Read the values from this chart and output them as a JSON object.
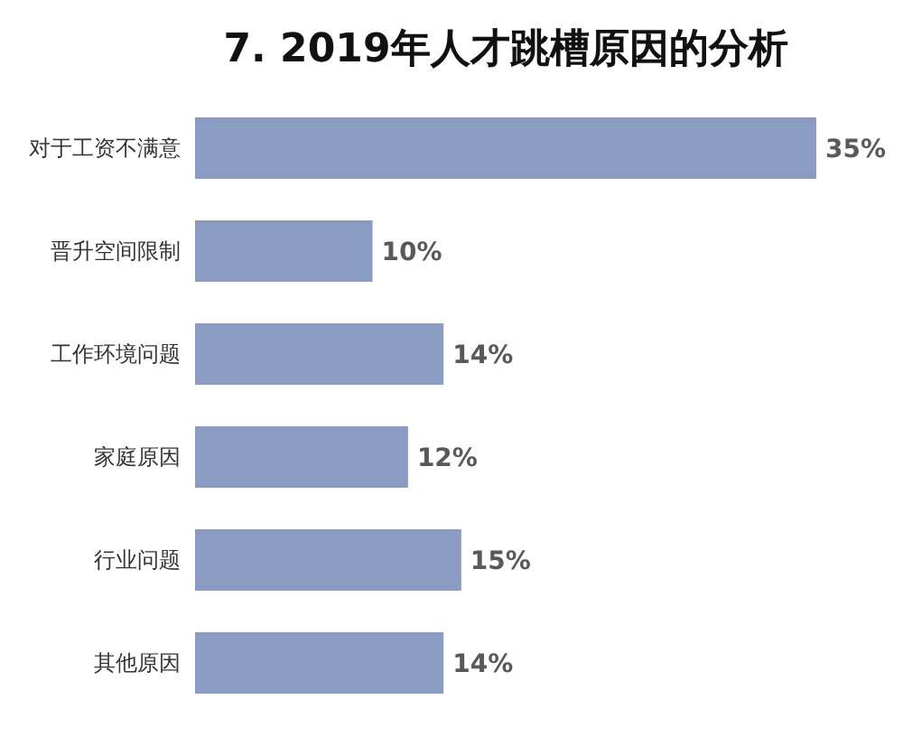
{
  "chart_data": {
    "type": "bar",
    "orientation": "horizontal",
    "title": "7. 2019年人才跳槽原因的分析",
    "categories": [
      "对于工资不满意",
      "晋升空间限制",
      "工作环境问题",
      "家庭原因",
      "行业问题",
      "其他原因"
    ],
    "values": [
      35,
      10,
      14,
      12,
      15,
      14
    ],
    "value_labels": [
      "35%",
      "10%",
      "14%",
      "12%",
      "15%",
      "14%"
    ],
    "color": "#8a9cc2",
    "grid": false,
    "legend": false
  }
}
